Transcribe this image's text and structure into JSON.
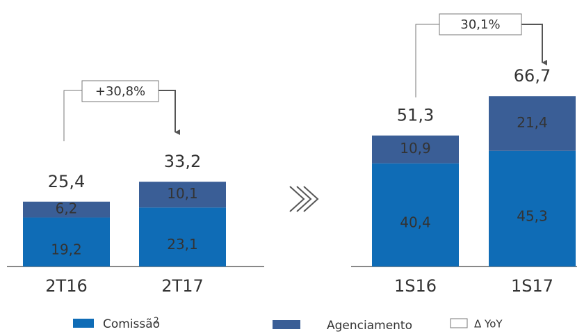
{
  "chart_data": [
    {
      "type": "bar",
      "stacked": true,
      "categories": [
        "2T16",
        "2T17"
      ],
      "series": [
        {
          "name": "Comissão",
          "color": "#0f6cb6",
          "values": [
            19.2,
            23.1
          ],
          "value_labels": [
            "19,2",
            "23,1"
          ]
        },
        {
          "name": "Agenciamento",
          "color": "#3a5e96",
          "values": [
            6.2,
            10.1
          ],
          "value_labels": [
            "6,2",
            "10,1"
          ]
        }
      ],
      "totals": [
        25.4,
        33.2
      ],
      "total_labels": [
        "25,4",
        "33,2"
      ],
      "annotation": "+30,8%"
    },
    {
      "type": "bar",
      "stacked": true,
      "categories": [
        "1S16",
        "1S17"
      ],
      "series": [
        {
          "name": "Comissão",
          "color": "#0f6cb6",
          "values": [
            40.4,
            45.3
          ],
          "value_labels": [
            "40,4",
            "45,3"
          ]
        },
        {
          "name": "Agenciamento",
          "color": "#3a5e96",
          "values": [
            10.9,
            21.4
          ],
          "value_labels": [
            "10,9",
            "21,4"
          ]
        }
      ],
      "totals": [
        51.3,
        66.7
      ],
      "total_labels": [
        "51,3",
        "66,7"
      ],
      "annotation": "30,1%"
    }
  ],
  "legend": {
    "commission_note": "2",
    "yoy_label": "Δ YoY"
  }
}
